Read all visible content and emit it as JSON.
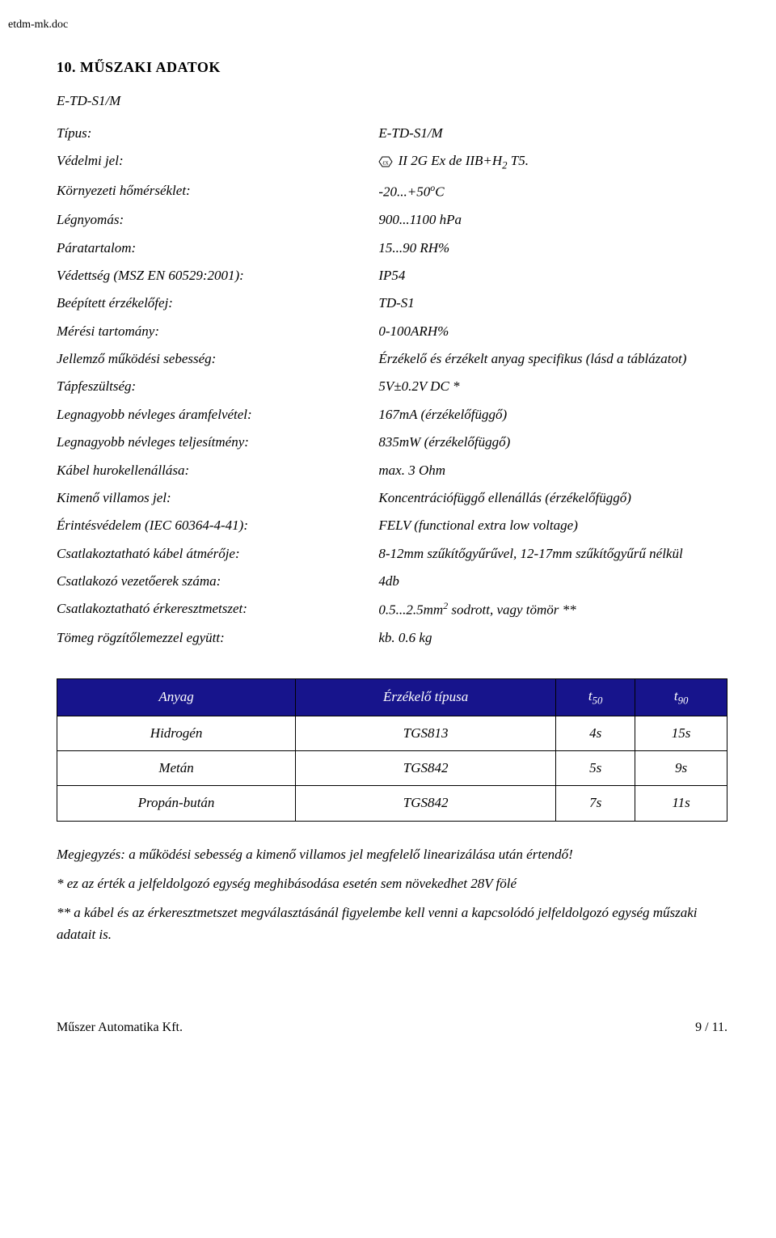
{
  "doc_header": "etdm-mk.doc",
  "section": {
    "title": "10. MŰSZAKI ADATOK",
    "model": "E-TD-S1/M"
  },
  "specs": [
    {
      "label": "Típus:",
      "value": "E-TD-S1/M"
    },
    {
      "label": "Védelmi jel:",
      "value_prefix": "",
      "value_main": "II 2G Ex de IIB+H",
      "value_sub": "2",
      "value_suffix": " T5.",
      "has_ex_icon": true
    },
    {
      "label": "Környezeti hőmérséklet:",
      "value_main": "-20...+50",
      "value_sup": "o",
      "value_suffix": "C"
    },
    {
      "label": "Légnyomás:",
      "value": "900...1100 hPa"
    },
    {
      "label": "Páratartalom:",
      "value": "15...90 RH%"
    },
    {
      "label": "Védettség (MSZ EN 60529:2001):",
      "value": "IP54"
    },
    {
      "label": "Beépített érzékelőfej:",
      "value": "TD-S1"
    },
    {
      "label": "Mérési tartomány:",
      "value": "0-100ARH%"
    },
    {
      "label": "Jellemző működési sebesség:",
      "value": "Érzékelő és érzékelt anyag specifikus (lásd a táblázatot)"
    },
    {
      "label": "Tápfeszültség:",
      "value": "5V±0.2V DC *"
    },
    {
      "label": "Legnagyobb névleges áramfelvétel:",
      "value": "167mA (érzékelőfüggő)"
    },
    {
      "label": "Legnagyobb névleges teljesítmény:",
      "value": "835mW (érzékelőfüggő)"
    },
    {
      "label": "Kábel hurokellenállása:",
      "value": "max. 3 Ohm"
    },
    {
      "label": "Kimenő villamos jel:",
      "value": "Koncentrációfüggő ellenállás (érzékelőfüggő)"
    },
    {
      "label": "Érintésvédelem (IEC 60364-4-41):",
      "value": "FELV (functional extra low voltage)"
    },
    {
      "label": "Csatlakoztatható kábel átmérője:",
      "value": "8-12mm szűkítőgyűrűvel, 12-17mm szűkítőgyűrű nélkül"
    },
    {
      "label": "Csatlakozó vezetőerek száma:",
      "value": "4db"
    },
    {
      "label": "Csatlakoztatható érkeresztmetszet:",
      "value_main": "0.5...2.5mm",
      "value_sup": "2",
      "value_suffix": " sodrott, vagy tömör **"
    },
    {
      "label": "Tömeg rögzítőlemezzel együtt:",
      "value": "kb. 0.6 kg"
    }
  ],
  "table": {
    "header_bg": "#17148c",
    "header_fg": "#ffffff",
    "border_color": "#000000",
    "columns": [
      {
        "label": "Anyag"
      },
      {
        "label": "Érzékelő típusa"
      },
      {
        "label_main": "t",
        "label_sub": "50"
      },
      {
        "label_main": "t",
        "label_sub": "90"
      }
    ],
    "rows": [
      [
        "Hidrogén",
        "TGS813",
        "4s",
        "15s"
      ],
      [
        "Metán",
        "TGS842",
        "5s",
        "9s"
      ],
      [
        "Propán-bután",
        "TGS842",
        "7s",
        "11s"
      ]
    ]
  },
  "notes": [
    "Megjegyzés: a működési sebesség a kimenő villamos jel megfelelő linearizálása után értendő!",
    "* ez az érték a jelfeldolgozó egység meghibásodása esetén sem növekedhet 28V fölé",
    "** a kábel és az érkeresztmetszet megválasztásánál figyelembe kell venni a kapcsolódó jelfeldolgozó egység műszaki adatait is."
  ],
  "footer": {
    "left": "Műszer Automatika Kft.",
    "right": "9 / 11."
  }
}
